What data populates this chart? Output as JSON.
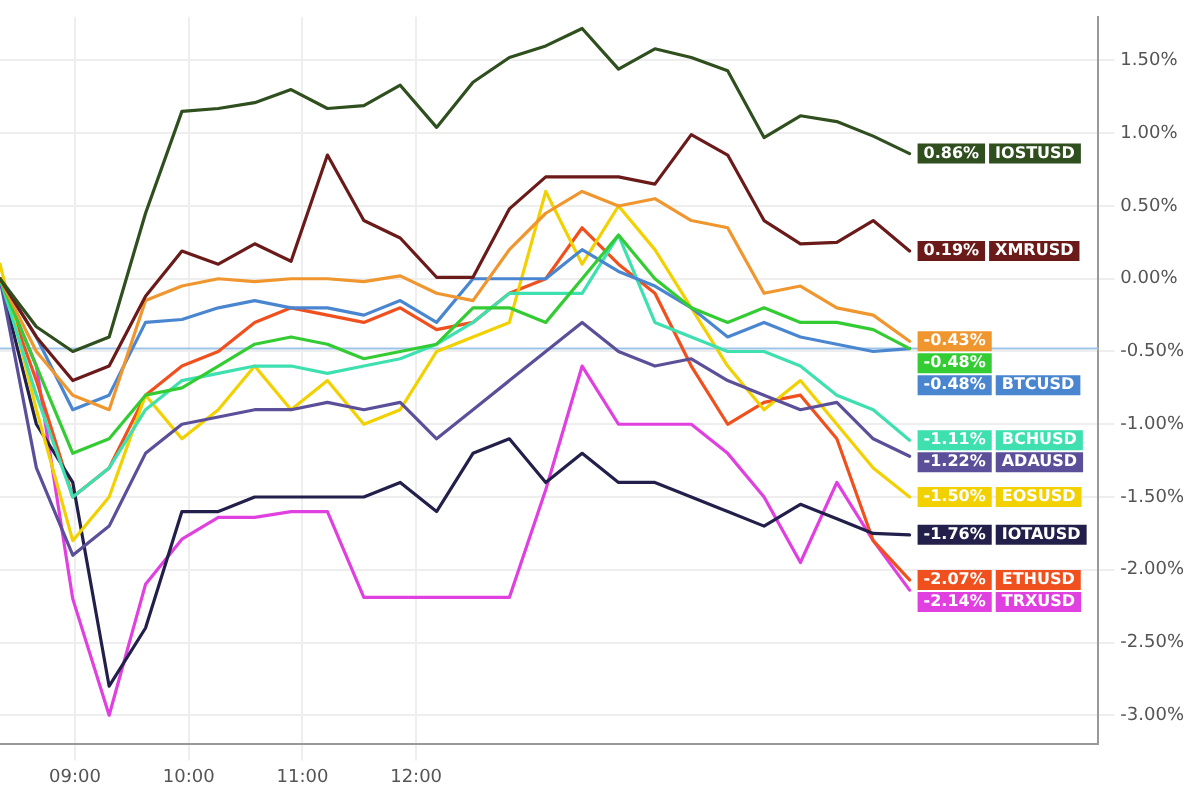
{
  "chart_data": {
    "type": "line",
    "x": [
      8.34,
      8.66,
      8.98,
      9.3,
      9.62,
      9.94,
      10.26,
      10.58,
      10.9,
      11.22,
      11.54,
      11.86,
      12.18,
      12.5,
      12.82,
      13.14,
      13.46,
      13.78,
      14.1,
      14.42,
      14.74,
      15.06,
      15.38,
      15.7,
      16.02,
      16.34
    ],
    "xlim": [
      8.34,
      18
    ],
    "xticks": [
      {
        "value": 9,
        "label": "09:00"
      },
      {
        "value": 10,
        "label": "10:00"
      },
      {
        "value": 11,
        "label": "11:00"
      },
      {
        "value": 12,
        "label": "12:00"
      }
    ],
    "ylim": [
      -3.2,
      1.8
    ],
    "yticks": [
      {
        "value": -3,
        "label": "-3.00%"
      },
      {
        "value": -2.5,
        "label": "-2.50%"
      },
      {
        "value": -2,
        "label": "-2.00%"
      },
      {
        "value": -1.5,
        "label": "-1.50%"
      },
      {
        "value": -1,
        "label": "-1.00%"
      },
      {
        "value": -0.5,
        "label": "-0.50%"
      },
      {
        "value": 0,
        "label": "0.00%"
      },
      {
        "value": 0.5,
        "label": "0.50%"
      },
      {
        "value": 1,
        "label": "1.00%"
      },
      {
        "value": 1.5,
        "label": "1.50%"
      }
    ],
    "grid": true,
    "legend": "right",
    "marker": "none",
    "line_style": "solid",
    "ref_lines": [
      {
        "axis": "y",
        "value": -0.48,
        "color": "#9ec5e8"
      }
    ],
    "series": [
      {
        "name": "IOSTUSD",
        "color": "#2f4f1f",
        "values": [
          0,
          -0.33,
          -0.5,
          -0.4,
          0.45,
          1.15,
          1.17,
          1.21,
          1.3,
          1.17,
          1.19,
          1.33,
          1.04,
          1.35,
          1.52,
          1.6,
          1.72,
          1.44,
          1.58,
          1.52,
          1.43,
          0.97,
          1.12,
          1.08,
          0.98,
          0.86
        ],
        "value_labels": [
          null,
          null,
          null,
          null,
          null,
          null,
          null,
          null,
          null,
          null,
          null,
          null,
          null,
          null,
          null,
          null,
          null,
          null,
          null,
          null,
          null,
          null,
          null,
          null,
          null,
          "0.86%"
        ]
      },
      {
        "name": "XMRUSD",
        "color": "#6b1a1a",
        "values": [
          0,
          -0.4,
          -0.7,
          -0.6,
          -0.12,
          0.19,
          0.1,
          0.24,
          0.12,
          0.85,
          0.4,
          0.28,
          0.01,
          0.01,
          0.48,
          0.7,
          0.7,
          0.7,
          0.65,
          0.99,
          0.85,
          0.4,
          0.24,
          0.25,
          0.4,
          0.19
        ],
        "value_labels": [
          null,
          null,
          null,
          null,
          null,
          null,
          null,
          null,
          null,
          null,
          null,
          null,
          null,
          null,
          null,
          null,
          null,
          null,
          null,
          null,
          null,
          null,
          null,
          null,
          null,
          "0.19%"
        ]
      },
      {
        "color": "#f0962e",
        "values": [
          0,
          -0.5,
          -0.8,
          -0.9,
          -0.15,
          -0.05,
          0,
          -0.02,
          0,
          0,
          -0.02,
          0.02,
          -0.1,
          -0.15,
          0.2,
          0.45,
          0.6,
          0.5,
          0.55,
          0.4,
          0.35,
          -0.1,
          -0.05,
          -0.2,
          -0.25,
          -0.43
        ],
        "value_labels": [
          null,
          null,
          null,
          null,
          null,
          null,
          null,
          null,
          null,
          null,
          null,
          null,
          null,
          null,
          null,
          null,
          null,
          null,
          null,
          null,
          null,
          null,
          null,
          null,
          null,
          "-0.43%"
        ]
      },
      {
        "color": "#33cc33",
        "values": [
          0,
          -0.6,
          -1.2,
          -1.1,
          -0.8,
          -0.75,
          -0.6,
          -0.45,
          -0.4,
          -0.45,
          -0.55,
          -0.5,
          -0.45,
          -0.2,
          -0.2,
          -0.3,
          0,
          0.3,
          0,
          -0.2,
          -0.3,
          -0.2,
          -0.3,
          -0.3,
          -0.35,
          -0.48
        ],
        "value_labels": [
          null,
          null,
          null,
          null,
          null,
          null,
          null,
          null,
          null,
          null,
          null,
          null,
          null,
          null,
          null,
          null,
          null,
          null,
          null,
          null,
          null,
          null,
          null,
          null,
          null,
          "-0.48%"
        ]
      },
      {
        "name": "BTCUSD",
        "color": "#4a86d0",
        "values": [
          0,
          -0.4,
          -0.9,
          -0.8,
          -0.3,
          -0.28,
          -0.2,
          -0.15,
          -0.2,
          -0.2,
          -0.25,
          -0.15,
          -0.3,
          0,
          0,
          0,
          0.2,
          0.05,
          -0.05,
          -0.2,
          -0.4,
          -0.3,
          -0.4,
          -0.45,
          -0.5,
          -0.48
        ],
        "value_labels": [
          null,
          null,
          null,
          null,
          null,
          null,
          null,
          null,
          null,
          null,
          null,
          null,
          null,
          null,
          null,
          null,
          null,
          null,
          null,
          null,
          null,
          null,
          null,
          null,
          null,
          "-0.48%"
        ]
      },
      {
        "name": "BCHUSD",
        "color": "#3ee0b0",
        "values": [
          0,
          -0.8,
          -1.5,
          -1.3,
          -0.9,
          -0.7,
          -0.65,
          -0.6,
          -0.6,
          -0.65,
          -0.6,
          -0.55,
          -0.45,
          -0.3,
          -0.1,
          -0.1,
          -0.1,
          0.3,
          -0.3,
          -0.4,
          -0.5,
          -0.5,
          -0.6,
          -0.8,
          -0.9,
          -1.11
        ],
        "value_labels": [
          null,
          null,
          null,
          null,
          null,
          null,
          null,
          null,
          null,
          null,
          null,
          null,
          null,
          null,
          null,
          null,
          null,
          null,
          null,
          null,
          null,
          null,
          null,
          null,
          null,
          "-1.11%"
        ]
      },
      {
        "name": "ADAUSD",
        "color": "#5c4f9a",
        "values": [
          0,
          -1.3,
          -1.9,
          -1.7,
          -1.2,
          -1,
          -0.95,
          -0.9,
          -0.9,
          -0.85,
          -0.9,
          -0.85,
          -1.1,
          -0.9,
          -0.7,
          -0.5,
          -0.3,
          -0.5,
          -0.6,
          -0.55,
          -0.7,
          -0.8,
          -0.9,
          -0.85,
          -1.1,
          -1.22
        ],
        "value_labels": [
          null,
          null,
          null,
          null,
          null,
          null,
          null,
          null,
          null,
          null,
          null,
          null,
          null,
          null,
          null,
          null,
          null,
          null,
          null,
          null,
          null,
          null,
          null,
          null,
          null,
          "-1.22%"
        ]
      },
      {
        "name": "EOSUSD",
        "color": "#f2d100",
        "values": [
          0.1,
          -0.9,
          -1.8,
          -1.5,
          -0.8,
          -1.1,
          -0.9,
          -0.6,
          -0.9,
          -0.7,
          -1,
          -0.9,
          -0.5,
          -0.4,
          -0.3,
          0.6,
          0.1,
          0.5,
          0.2,
          -0.2,
          -0.6,
          -0.9,
          -0.7,
          -1,
          -1.3,
          -1.5
        ],
        "value_labels": [
          null,
          null,
          null,
          null,
          null,
          null,
          null,
          null,
          null,
          null,
          null,
          null,
          null,
          null,
          null,
          null,
          null,
          null,
          null,
          null,
          null,
          null,
          null,
          null,
          null,
          "-1.50%"
        ]
      },
      {
        "name": "IOTAUSD",
        "color": "#22204a",
        "values": [
          0,
          -1,
          -1.4,
          -2.8,
          -2.4,
          -1.6,
          -1.6,
          -1.5,
          -1.5,
          -1.5,
          -1.5,
          -1.4,
          -1.6,
          -1.2,
          -1.1,
          -1.4,
          -1.2,
          -1.4,
          -1.4,
          -1.5,
          -1.6,
          -1.7,
          -1.55,
          -1.65,
          -1.75,
          -1.76
        ],
        "value_labels": [
          null,
          null,
          null,
          null,
          null,
          null,
          null,
          null,
          null,
          null,
          null,
          null,
          null,
          null,
          null,
          null,
          null,
          null,
          null,
          null,
          null,
          null,
          null,
          null,
          null,
          "-1.76%"
        ]
      },
      {
        "name": "ETHUSD",
        "color": "#f0501e",
        "values": [
          0,
          -0.7,
          -1.5,
          -1.3,
          -0.8,
          -0.6,
          -0.5,
          -0.3,
          -0.2,
          -0.25,
          -0.3,
          -0.2,
          -0.35,
          -0.3,
          -0.1,
          0,
          0.35,
          0.1,
          -0.1,
          -0.6,
          -1,
          -0.85,
          -0.8,
          -1.1,
          -1.8,
          -2.07
        ],
        "value_labels": [
          null,
          null,
          null,
          null,
          null,
          null,
          null,
          null,
          null,
          null,
          null,
          null,
          null,
          null,
          null,
          null,
          null,
          null,
          null,
          null,
          null,
          null,
          null,
          null,
          null,
          "-2.07%"
        ]
      },
      {
        "name": "TRXUSD",
        "color": "#e040e0",
        "values": [
          0,
          -0.6,
          -2.2,
          -3,
          -2.1,
          -1.79,
          -1.64,
          -1.64,
          -1.6,
          -1.6,
          -2.19,
          -2.19,
          -2.19,
          -2.19,
          -2.19,
          -1.45,
          -0.6,
          -1,
          -1,
          -1,
          -1.2,
          -1.5,
          -1.95,
          -1.4,
          -1.8,
          -2.14
        ],
        "value_labels": [
          null,
          null,
          null,
          null,
          null,
          null,
          null,
          null,
          null,
          null,
          null,
          null,
          null,
          null,
          null,
          null,
          null,
          null,
          null,
          null,
          null,
          null,
          null,
          null,
          null,
          "-2.14%"
        ]
      }
    ]
  }
}
